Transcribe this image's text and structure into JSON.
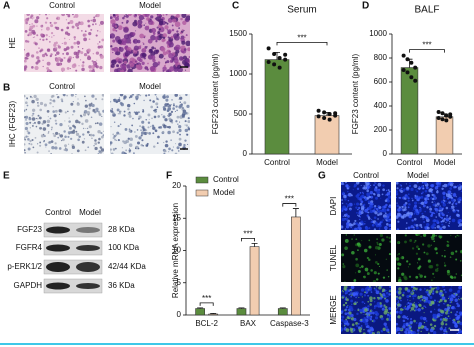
{
  "chart_data": [
    {
      "type": "bar",
      "title": "Serum",
      "y_label": "FGF23 content (pg/ml)",
      "categories": [
        "Control",
        "Model"
      ],
      "values": [
        1180,
        480
      ],
      "errors": [
        90,
        40
      ],
      "points": [
        [
          1320,
          1250,
          1200,
          1180,
          1150,
          1120,
          1080,
          1240
        ],
        [
          540,
          520,
          500,
          480,
          470,
          450,
          430,
          510
        ]
      ],
      "colors": [
        "#5b8c3e",
        "#f2cdb0"
      ],
      "significance": "***",
      "ylim": [
        0,
        1500
      ],
      "yticks": [
        0,
        500,
        1000,
        1500
      ]
    },
    {
      "type": "bar",
      "title": "BALF",
      "y_label": "FGF23 content (pg/ml)",
      "categories": [
        "Control",
        "Model"
      ],
      "values": [
        720,
        310
      ],
      "errors": [
        70,
        25
      ],
      "points": [
        [
          820,
          790,
          760,
          720,
          700,
          680,
          640,
          610
        ],
        [
          350,
          340,
          320,
          310,
          300,
          290,
          280,
          330
        ]
      ],
      "colors": [
        "#5b8c3e",
        "#f2cdb0"
      ],
      "significance": "***",
      "ylim": [
        0,
        1000
      ],
      "yticks": [
        0,
        200,
        400,
        600,
        800,
        1000
      ]
    },
    {
      "type": "grouped_bar",
      "y_label": "Relative mRNA expression",
      "categories": [
        "BCL-2",
        "BAX",
        "Caspase-3"
      ],
      "series": [
        {
          "name": "Control",
          "color": "#5b8c3e",
          "values": [
            1,
            1,
            1
          ],
          "errors": [
            0.1,
            0.1,
            0.1
          ]
        },
        {
          "name": "Model",
          "color": "#f2cdb0",
          "values": [
            0.15,
            10.6,
            15.2
          ],
          "errors": [
            0.1,
            0.5,
            1.3
          ]
        }
      ],
      "significance": "***",
      "legend": "top-left",
      "ylim": [
        0,
        20
      ],
      "yticks": [
        0,
        5,
        10,
        15,
        20
      ]
    }
  ],
  "figure": {
    "panel_letters": [
      "A",
      "B",
      "C",
      "D",
      "E",
      "F",
      "G"
    ],
    "histology": {
      "columns": [
        "Control",
        "Model"
      ],
      "rows": [
        "HE",
        "IHC (FGF23)"
      ]
    },
    "blot": {
      "lanes": [
        "Control",
        "Model"
      ],
      "rows": [
        {
          "label": "FGF23",
          "kda": "28 KDa"
        },
        {
          "label": "FGFR4",
          "kda": "100 KDa"
        },
        {
          "label": "p-ERK1/2",
          "kda": "42/44 KDa"
        },
        {
          "label": "GAPDH",
          "kda": "36 KDa"
        }
      ]
    },
    "fluorescence": {
      "columns": [
        "Control",
        "Model"
      ],
      "rows": [
        "DAPI",
        "TUNEL",
        "MERGE"
      ]
    }
  }
}
